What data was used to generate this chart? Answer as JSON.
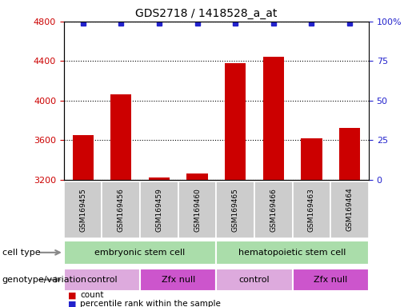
{
  "title": "GDS2718 / 1418528_a_at",
  "samples": [
    "GSM169455",
    "GSM169456",
    "GSM169459",
    "GSM169460",
    "GSM169465",
    "GSM169466",
    "GSM169463",
    "GSM169464"
  ],
  "counts": [
    3650,
    4060,
    3220,
    3260,
    4380,
    4440,
    3620,
    3720
  ],
  "y_min": 3200,
  "y_max": 4800,
  "yticks_left": [
    3200,
    3600,
    4000,
    4400,
    4800
  ],
  "yticks_right": [
    0,
    25,
    50,
    75,
    100
  ],
  "bar_color": "#cc0000",
  "dot_color": "#2222cc",
  "cell_type_groups": [
    {
      "label": "embryonic stem cell",
      "start": 0,
      "end": 3,
      "color": "#aaddaa"
    },
    {
      "label": "hematopoietic stem cell",
      "start": 4,
      "end": 7,
      "color": "#aaddaa"
    }
  ],
  "genotype_groups": [
    {
      "label": "control",
      "start": 0,
      "end": 1,
      "color": "#ddaadd"
    },
    {
      "label": "Zfx null",
      "start": 2,
      "end": 3,
      "color": "#cc55cc"
    },
    {
      "label": "control",
      "start": 4,
      "end": 5,
      "color": "#ddaadd"
    },
    {
      "label": "Zfx null",
      "start": 6,
      "end": 7,
      "color": "#cc55cc"
    }
  ],
  "tick_color_left": "#cc0000",
  "tick_color_right": "#2222cc",
  "title_fontsize": 10,
  "sample_fontsize": 6.5,
  "panel_fontsize": 8,
  "legend_fontsize": 7.5
}
